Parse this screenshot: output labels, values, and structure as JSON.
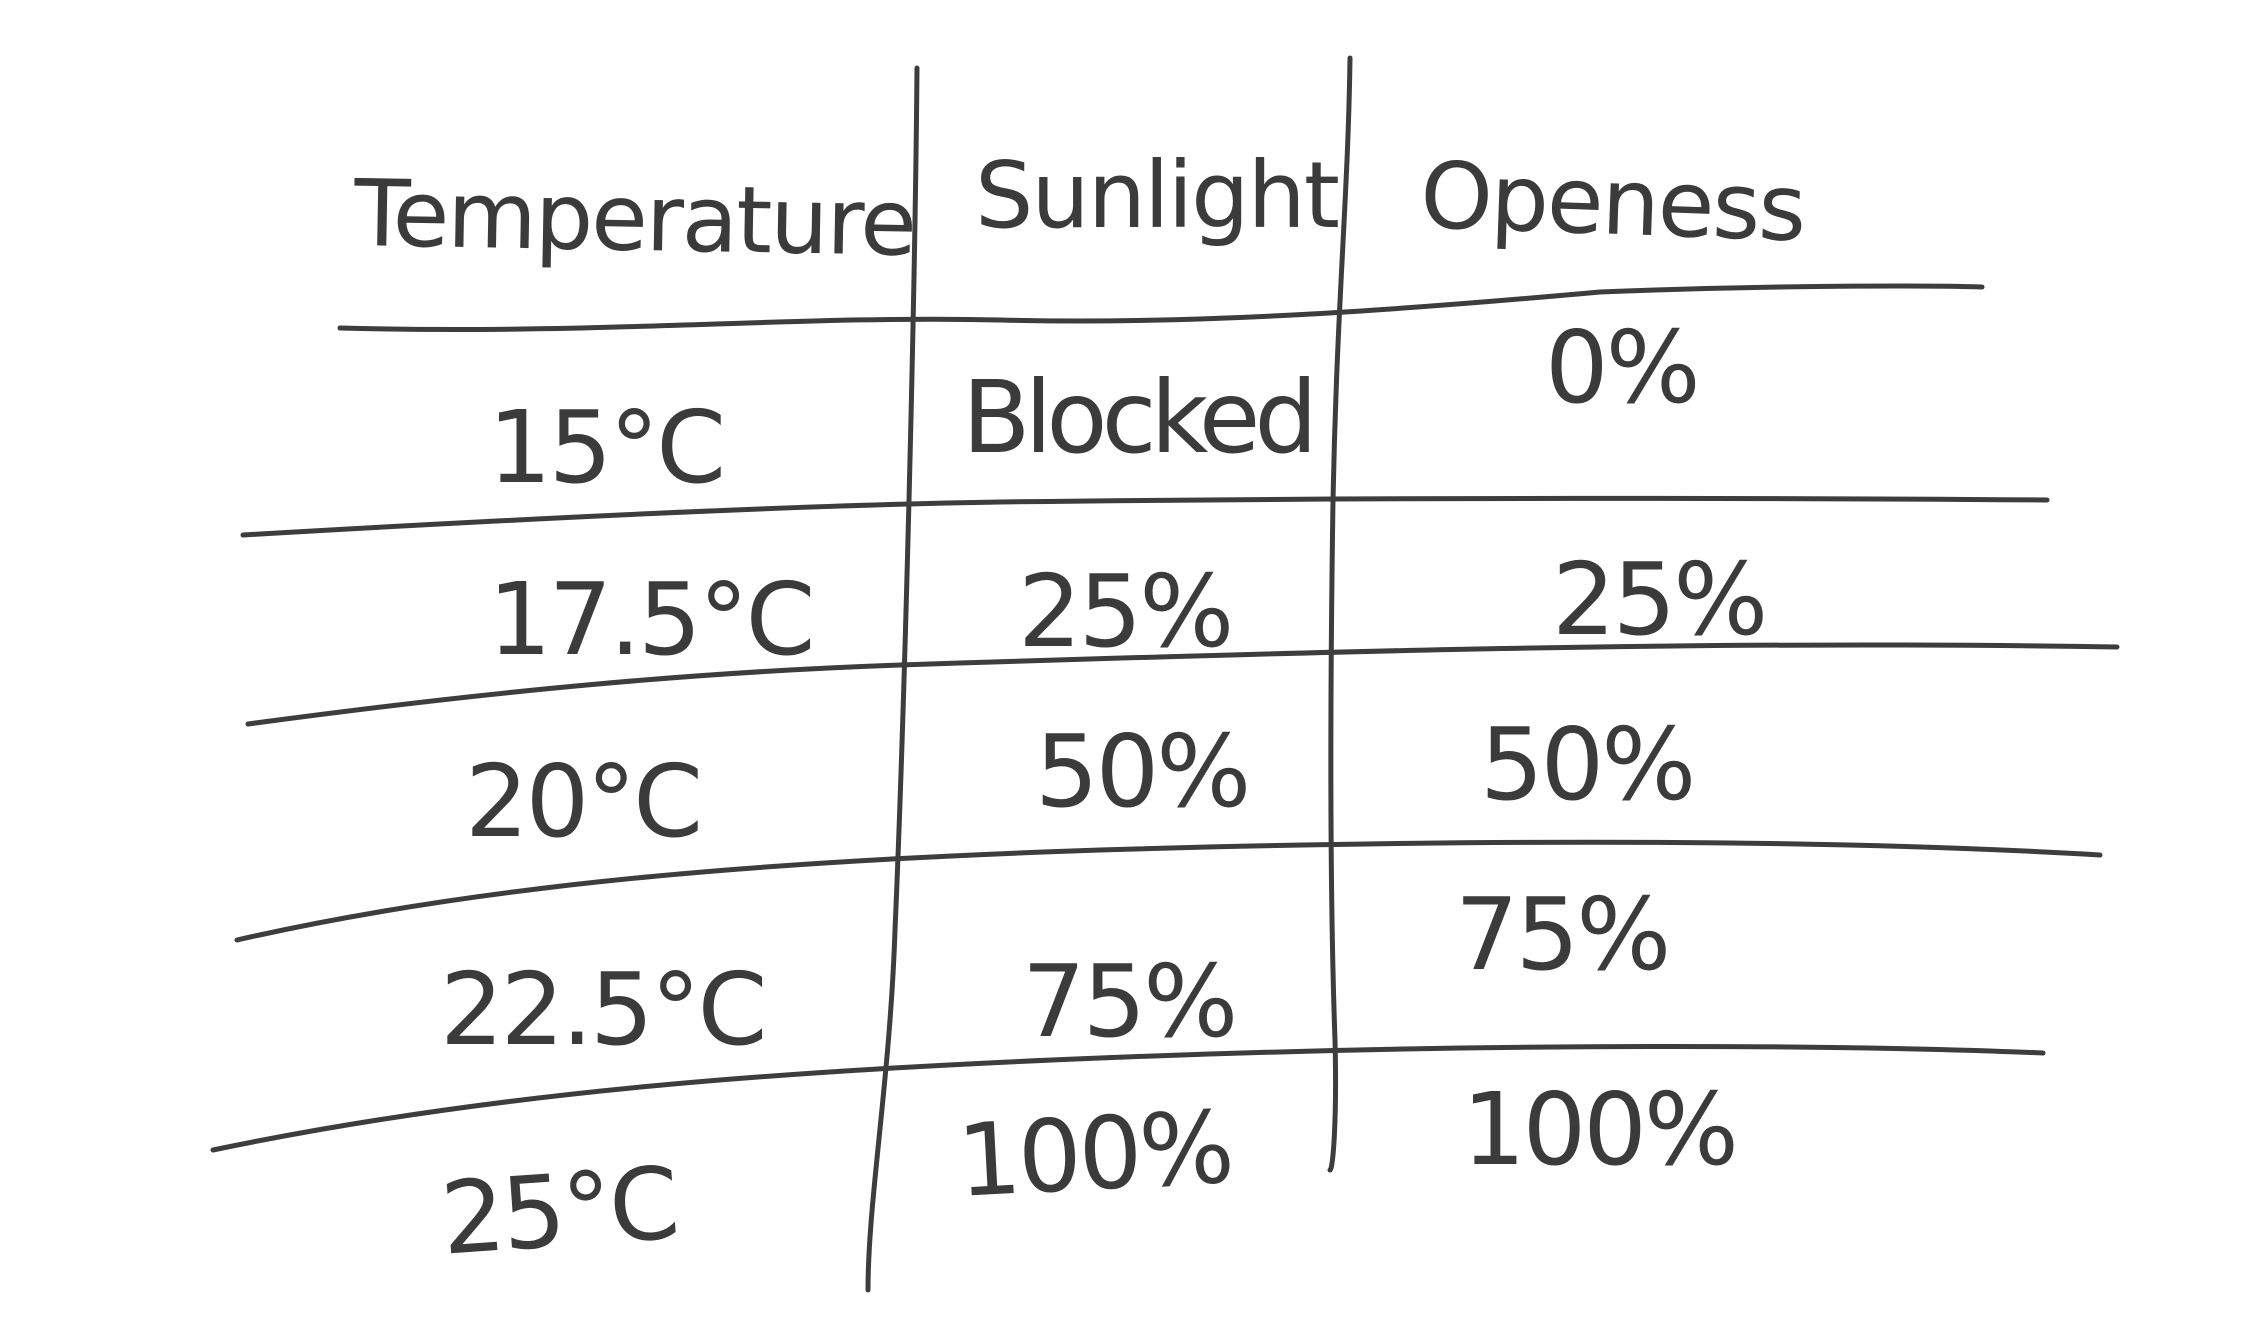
{
  "table": {
    "headers": [
      "Temperature",
      "Sunlight",
      "Openess"
    ],
    "rows": [
      {
        "temperature": "15°C",
        "sunlight": "Blocked",
        "openness": "0%"
      },
      {
        "temperature": "17.5°C",
        "sunlight": "25%",
        "openness": "25%"
      },
      {
        "temperature": "20°C",
        "sunlight": "50%",
        "openness": "50%"
      },
      {
        "temperature": "22.5°C",
        "sunlight": "75%",
        "openness": "75%"
      },
      {
        "temperature": "25°C",
        "sunlight": "100%",
        "openness": "100%"
      }
    ]
  },
  "colors": {
    "ink": "#3b3b3b",
    "background": "#ffffff"
  }
}
